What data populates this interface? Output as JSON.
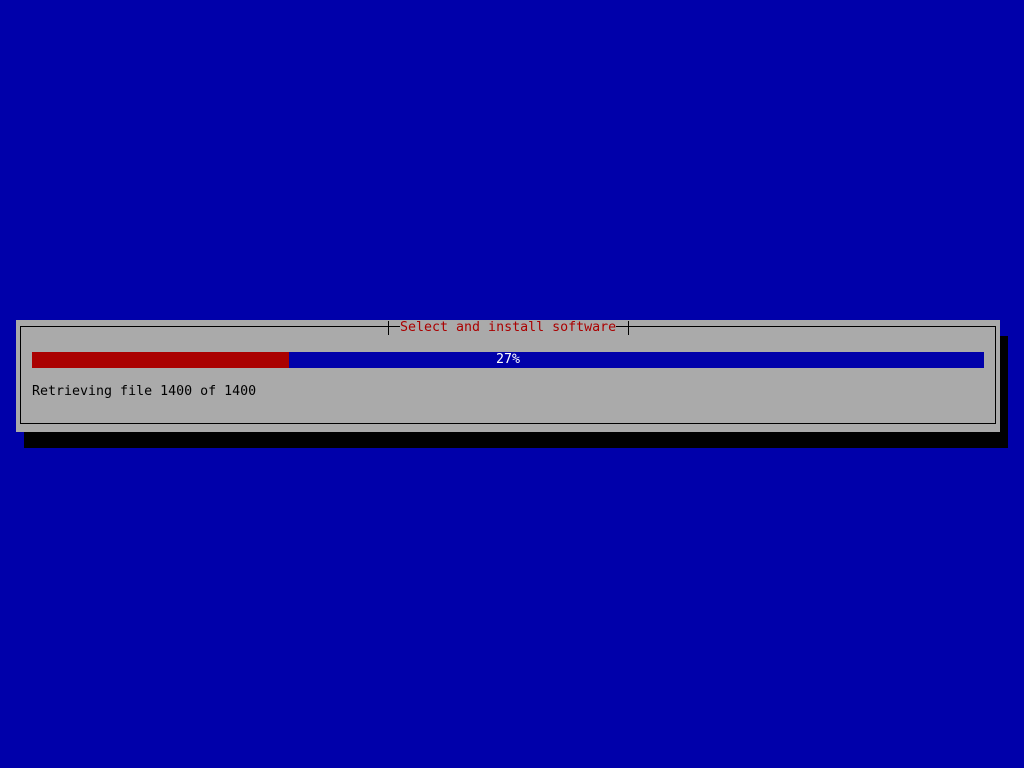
{
  "colors": {
    "background": "#0000aa",
    "dialog": "#aaaaaa",
    "title": "#aa0000",
    "progress_fill": "#aa0000",
    "progress_track": "#0000aa"
  },
  "dialog": {
    "title": "Select and install software",
    "progress": {
      "percent": 27,
      "label": "27%"
    },
    "status": "Retrieving file 1400 of 1400"
  }
}
